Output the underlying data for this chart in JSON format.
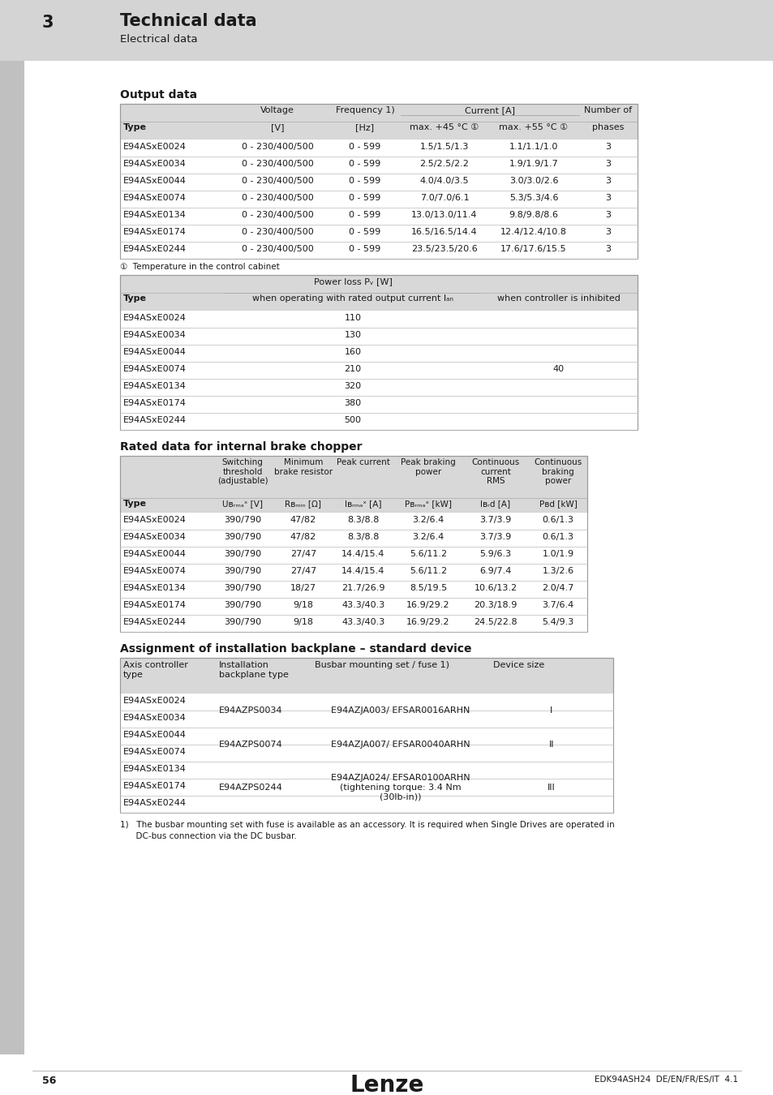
{
  "page_bg": "#ffffff",
  "header_bg": "#d4d4d4",
  "section_num": "3",
  "title": "Technical data",
  "subtitle": "Electrical data",
  "section1_title": "Output data",
  "section2_title": "Rated data for internal brake chopper",
  "section3_title": "Assignment of installation backplane – standard device",
  "table_header_bg": "#d8d8d8",
  "table_row_bg": "#ffffff",
  "output_table": {
    "rows": [
      [
        "E94ASxE0024",
        "0 - 230/400/500",
        "0 - 599",
        "1.5/1.5/1.3",
        "1.1/1.1/1.0",
        "3"
      ],
      [
        "E94ASxE0034",
        "0 - 230/400/500",
        "0 - 599",
        "2.5/2.5/2.2",
        "1.9/1.9/1.7",
        "3"
      ],
      [
        "E94ASxE0044",
        "0 - 230/400/500",
        "0 - 599",
        "4.0/4.0/3.5",
        "3.0/3.0/2.6",
        "3"
      ],
      [
        "E94ASxE0074",
        "0 - 230/400/500",
        "0 - 599",
        "7.0/7.0/6.1",
        "5.3/5.3/4.6",
        "3"
      ],
      [
        "E94ASxE0134",
        "0 - 230/400/500",
        "0 - 599",
        "13.0/13.0/11.4",
        "9.8/9.8/8.6",
        "3"
      ],
      [
        "E94ASxE0174",
        "0 - 230/400/500",
        "0 - 599",
        "16.5/16.5/14.4",
        "12.4/12.4/10.8",
        "3"
      ],
      [
        "E94ASxE0244",
        "0 - 230/400/500",
        "0 - 599",
        "23.5/23.5/20.6",
        "17.6/17.6/15.5",
        "3"
      ]
    ],
    "footnote": "①  Temperature in the control cabinet"
  },
  "power_loss_table": {
    "rows": [
      [
        "E94ASxE0024",
        "110",
        ""
      ],
      [
        "E94ASxE0034",
        "130",
        ""
      ],
      [
        "E94ASxE0044",
        "160",
        ""
      ],
      [
        "E94ASxE0074",
        "210",
        "40"
      ],
      [
        "E94ASxE0134",
        "320",
        ""
      ],
      [
        "E94ASxE0174",
        "380",
        ""
      ],
      [
        "E94ASxE0244",
        "500",
        ""
      ]
    ]
  },
  "brake_table": {
    "rows": [
      [
        "E94ASxE0024",
        "390/790",
        "47/82",
        "8.3/8.8",
        "3.2/6.4",
        "3.7/3.9",
        "0.6/1.3"
      ],
      [
        "E94ASxE0034",
        "390/790",
        "47/82",
        "8.3/8.8",
        "3.2/6.4",
        "3.7/3.9",
        "0.6/1.3"
      ],
      [
        "E94ASxE0044",
        "390/790",
        "27/47",
        "14.4/15.4",
        "5.6/11.2",
        "5.9/6.3",
        "1.0/1.9"
      ],
      [
        "E94ASxE0074",
        "390/790",
        "27/47",
        "14.4/15.4",
        "5.6/11.2",
        "6.9/7.4",
        "1.3/2.6"
      ],
      [
        "E94ASxE0134",
        "390/790",
        "18/27",
        "21.7/26.9",
        "8.5/19.5",
        "10.6/13.2",
        "2.0/4.7"
      ],
      [
        "E94ASxE0174",
        "390/790",
        "9/18",
        "43.3/40.3",
        "16.9/29.2",
        "20.3/18.9",
        "3.7/6.4"
      ],
      [
        "E94ASxE0244",
        "390/790",
        "9/18",
        "43.3/40.3",
        "16.9/29.2",
        "24.5/22.8",
        "5.4/9.3"
      ]
    ]
  },
  "assign_table": {
    "col_headers": [
      "Axis controller\ntype",
      "Installation\nbackplane type",
      "Busbar mounting set / fuse 1)",
      "Device size"
    ],
    "row_groups": [
      {
        "types": [
          "E94ASxE0024",
          "E94ASxE0034"
        ],
        "backplane": "E94AZPS0034",
        "busbar": "E94AZJA003/ EFSAR0016ARHN",
        "device": "I"
      },
      {
        "types": [
          "E94ASxE0044",
          "E94ASxE0074"
        ],
        "backplane": "E94AZPS0074",
        "busbar": "E94AZJA007/ EFSAR0040ARHN",
        "device": "II"
      },
      {
        "types": [
          "E94ASxE0134",
          "E94ASxE0174",
          "E94ASxE0244"
        ],
        "backplane": "E94AZPS0244",
        "busbar": "E94AZJA024/ EFSAR0100ARHN\n(tightening torque: 3.4 Nm\n(30lb-in))",
        "device": "III"
      }
    ],
    "footnote1": "1)   The busbar mounting set with fuse is available as an accessory. It is required when Single Drives are operated in",
    "footnote2": "      DC-bus connection via the DC busbar."
  },
  "footer_page": "56",
  "footer_logo": "Lenze",
  "footer_right": "EDK94ASH24  DE/EN/FR/ES/IT  4.1"
}
